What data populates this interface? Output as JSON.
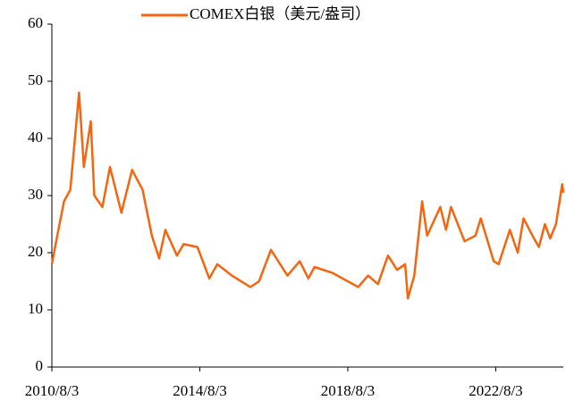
{
  "chart_data": {
    "type": "line",
    "x": [
      "2010/8/3",
      "2010/10/1",
      "2010/12/1",
      "2011/2/1",
      "2011/4/28",
      "2011/6/15",
      "2011/8/22",
      "2011/9/26",
      "2011/12/15",
      "2012/2/28",
      "2012/6/20",
      "2012/10/3",
      "2013/1/15",
      "2013/4/16",
      "2013/6/27",
      "2013/8/27",
      "2013/12/20",
      "2014/2/24",
      "2014/7/10",
      "2014/11/5",
      "2015/1/22",
      "2015/6/15",
      "2015/12/15",
      "2016/3/10",
      "2016/7/5",
      "2016/12/15",
      "2017/4/15",
      "2017/7/10",
      "2017/9/8",
      "2018/3/1",
      "2018/8/3",
      "2018/11/14",
      "2019/2/20",
      "2019/5/28",
      "2019/9/4",
      "2019/12/3",
      "2020/2/20",
      "2020/3/18",
      "2020/5/20",
      "2020/8/6",
      "2020/9/24",
      "2021/2/1",
      "2021/3/30",
      "2021/5/18",
      "2021/9/29",
      "2022/1/15",
      "2022/3/8",
      "2022/7/14",
      "2022/9/1",
      "2022/12/20",
      "2023/3/8",
      "2023/5/4",
      "2023/8/15",
      "2023/10/3",
      "2023/12/1",
      "2024/1/22",
      "2024/3/20",
      "2024/5/20",
      "2024/5/31"
    ],
    "series": [
      {
        "name": "COMEX白银（美元/盎司）",
        "color": "#f5650f",
        "values": [
          18,
          23.5,
          29,
          31,
          48,
          35,
          43,
          30,
          28,
          35,
          27,
          34.5,
          31,
          23,
          19,
          24,
          19.5,
          21.5,
          21,
          15.5,
          18,
          16,
          14,
          15,
          20.5,
          16,
          18.5,
          15.5,
          17.5,
          16.5,
          15,
          14,
          16,
          14.5,
          19.5,
          17,
          18,
          12,
          16,
          29,
          23,
          28,
          24,
          28,
          22,
          23,
          26,
          18.5,
          18,
          24,
          20,
          26,
          22.5,
          21,
          25,
          22.5,
          25,
          32,
          30.5
        ]
      }
    ],
    "xlim": [
      "2010/8/3",
      "2024/5/31"
    ],
    "xticks": [
      "2010/8/3",
      "2014/8/3",
      "2018/8/3",
      "2022/8/3"
    ],
    "ylim": [
      0,
      60
    ],
    "yticks": [
      0,
      10,
      20,
      30,
      40,
      50,
      60
    ],
    "legend": "top"
  }
}
